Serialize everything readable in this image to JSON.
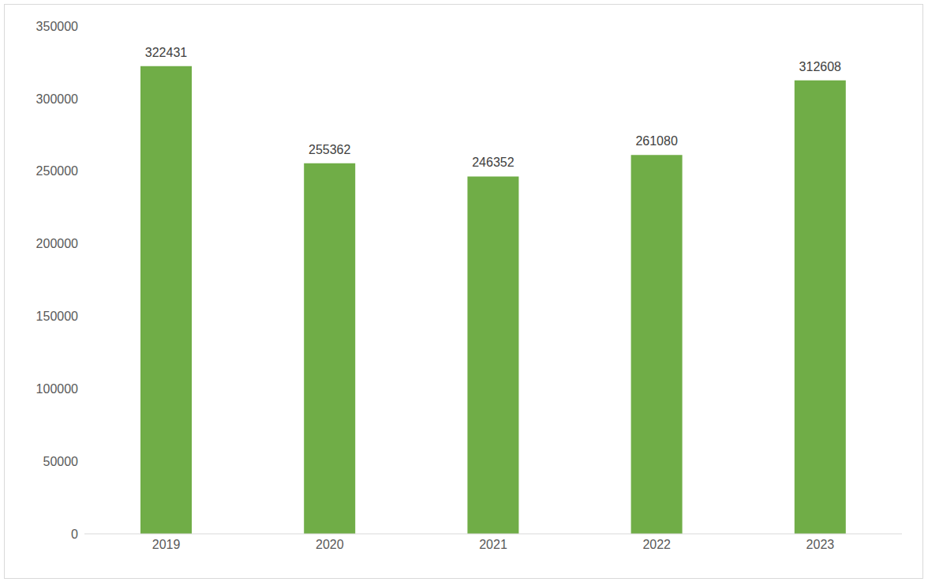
{
  "chart_data": {
    "type": "bar",
    "categories": [
      "2019",
      "2020",
      "2021",
      "2022",
      "2023"
    ],
    "values": [
      322431,
      255362,
      246352,
      261080,
      312608
    ],
    "color": "#70ad47",
    "ylim": [
      0,
      350000
    ],
    "yticks": [
      0,
      50000,
      100000,
      150000,
      200000,
      250000,
      300000,
      350000
    ],
    "grid": false,
    "data_labels": true
  }
}
